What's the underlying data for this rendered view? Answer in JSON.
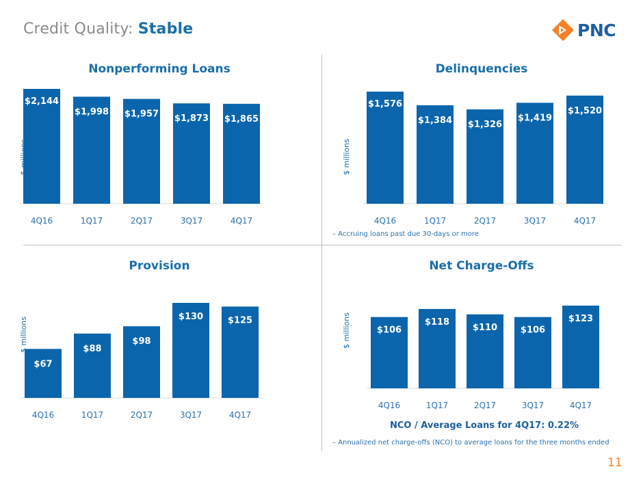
{
  "header": {
    "title_prefix": "Credit Quality:",
    "title_accent": "Stable",
    "logo_text": "PNC",
    "logo_icon": "pnc-diamond-icon",
    "logo_color": "#f58025"
  },
  "page_number": "11",
  "colors": {
    "bar": "#0b65ac",
    "label_inside": "#ffffff",
    "axis_tick": "#2a6fad",
    "title": "#1a6ea8"
  },
  "panels": {
    "npl": {
      "title": "Nonperforming Loans",
      "ylabel": "$ millions"
    },
    "delinquencies": {
      "title": "Delinquencies",
      "ylabel": "$ millions",
      "footnote": "–  Accruing loans past due 30-days or more"
    },
    "provision": {
      "title": "Provision",
      "ylabel": "$ millions"
    },
    "nco": {
      "title": "Net Charge-Offs",
      "ylabel": "$ millions",
      "note": "NCO / Average Loans for 4Q17: 0.22%",
      "footnote": "–  Annualized net charge-offs (NCO) to average loans for the three months ended"
    }
  },
  "chart_data": [
    {
      "type": "bar",
      "title": "Nonperforming Loans",
      "ylabel": "$ millions",
      "categories": [
        "4Q16",
        "1Q17",
        "2Q17",
        "3Q17",
        "4Q17"
      ],
      "values": [
        2144,
        1998,
        1957,
        1873,
        1865
      ],
      "data_labels": [
        "$2,144",
        "$1,998",
        "$1,957",
        "$1,873",
        "$1,865"
      ],
      "ylim": [
        0,
        2144
      ],
      "grid": false,
      "legend": "none"
    },
    {
      "type": "bar",
      "title": "Delinquencies",
      "ylabel": "$ millions",
      "categories": [
        "4Q16",
        "1Q17",
        "2Q17",
        "3Q17",
        "4Q17"
      ],
      "values": [
        1576,
        1384,
        1326,
        1419,
        1520
      ],
      "data_labels": [
        "$1,576",
        "$1,384",
        "$1,326",
        "$1,419",
        "$1,520"
      ],
      "ylim": [
        0,
        1576
      ],
      "grid": false,
      "legend": "none"
    },
    {
      "type": "bar",
      "title": "Provision",
      "ylabel": "$ millions",
      "categories": [
        "4Q16",
        "1Q17",
        "2Q17",
        "3Q17",
        "4Q17"
      ],
      "values": [
        67,
        88,
        98,
        130,
        125
      ],
      "data_labels": [
        "$67",
        "$88",
        "$98",
        "$130",
        "$125"
      ],
      "ylim": [
        0,
        130
      ],
      "grid": false,
      "legend": "none"
    },
    {
      "type": "bar",
      "title": "Net Charge-Offs",
      "ylabel": "$ millions",
      "categories": [
        "4Q16",
        "1Q17",
        "2Q17",
        "3Q17",
        "4Q17"
      ],
      "values": [
        106,
        118,
        110,
        106,
        123
      ],
      "data_labels": [
        "$106",
        "$118",
        "$110",
        "$106",
        "$123"
      ],
      "ylim": [
        0,
        123
      ],
      "grid": false,
      "legend": "none"
    }
  ]
}
